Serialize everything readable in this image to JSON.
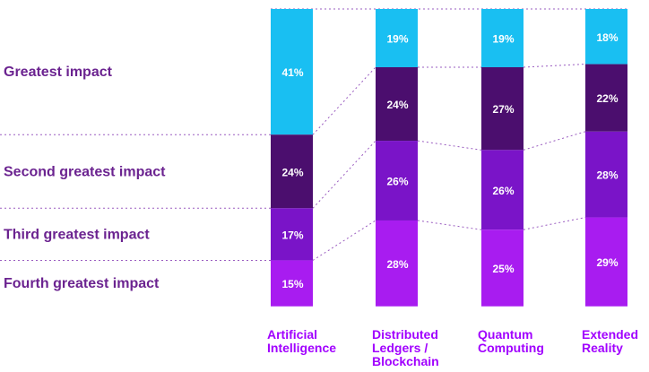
{
  "chart_data": {
    "type": "bar",
    "stacked": true,
    "orientation": "vertical",
    "title": "",
    "categories": [
      [
        "Artificial",
        "Intelligence"
      ],
      [
        "Distributed",
        "Ledgers /",
        "Blockchain"
      ],
      [
        "Quantum",
        "Computing"
      ],
      [
        "Extended",
        "Reality"
      ]
    ],
    "series": [
      {
        "name": "Greatest impact",
        "color": "#19BFF2",
        "values": [
          41,
          19,
          19,
          18
        ]
      },
      {
        "name": "Second greatest impact",
        "color": "#4B0E6E",
        "values": [
          24,
          24,
          27,
          22
        ]
      },
      {
        "name": "Third greatest impact",
        "color": "#7A14C8",
        "values": [
          17,
          26,
          26,
          28
        ]
      },
      {
        "name": "Fourth greatest impact",
        "color": "#A81CF0",
        "values": [
          15,
          28,
          25,
          29
        ]
      }
    ],
    "value_suffix": "%",
    "label_color": "#6B2390",
    "category_label_color": "#A100FF",
    "ylim": [
      0,
      100
    ]
  }
}
